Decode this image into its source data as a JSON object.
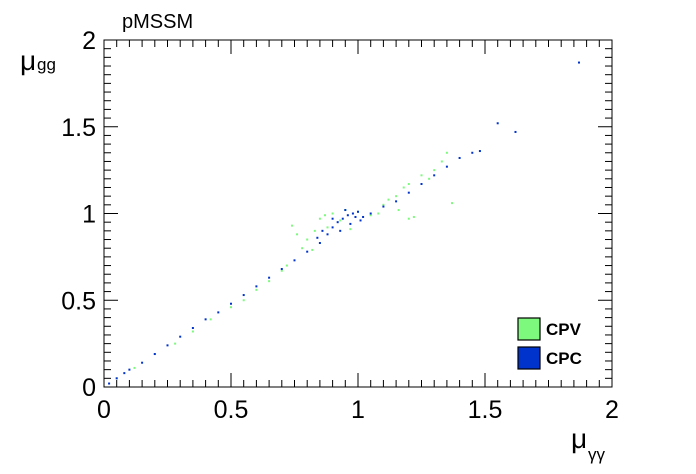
{
  "chart_data": {
    "type": "scatter",
    "title": "pMSSM",
    "xlabel": {
      "main": "μ",
      "sub": "γγ"
    },
    "ylabel": {
      "main": "μ",
      "sub": "gg"
    },
    "xlim": [
      0,
      2
    ],
    "ylim": [
      0,
      2
    ],
    "x_ticks": [
      "0",
      "0.5",
      "1",
      "1.5",
      "2"
    ],
    "y_ticks": [
      "0",
      "0.5",
      "1",
      "1.5",
      "2"
    ],
    "grid": false,
    "legend_position": "bottom-right",
    "series": [
      {
        "name": "CPV",
        "color": "#7dfa7d",
        "points": [
          [
            0.05,
            0.05
          ],
          [
            0.12,
            0.11
          ],
          [
            0.2,
            0.19
          ],
          [
            0.28,
            0.25
          ],
          [
            0.35,
            0.32
          ],
          [
            0.42,
            0.39
          ],
          [
            0.5,
            0.46
          ],
          [
            0.55,
            0.5
          ],
          [
            0.6,
            0.56
          ],
          [
            0.65,
            0.61
          ],
          [
            0.7,
            0.67
          ],
          [
            0.72,
            0.7
          ],
          [
            0.74,
            0.93
          ],
          [
            0.76,
            0.88
          ],
          [
            0.8,
            0.85
          ],
          [
            0.83,
            0.9
          ],
          [
            0.85,
            0.97
          ],
          [
            0.87,
            0.99
          ],
          [
            0.9,
            1.0
          ],
          [
            0.93,
            0.96
          ],
          [
            0.95,
            1.02
          ],
          [
            1.0,
            1.01
          ],
          [
            1.05,
            0.99
          ],
          [
            1.08,
            1.0
          ],
          [
            1.1,
            1.05
          ],
          [
            1.12,
            1.08
          ],
          [
            1.15,
            1.1
          ],
          [
            1.18,
            1.15
          ],
          [
            1.2,
            1.17
          ],
          [
            1.22,
            0.98
          ],
          [
            1.25,
            1.22
          ],
          [
            1.28,
            1.2
          ],
          [
            1.3,
            1.25
          ],
          [
            1.33,
            1.3
          ],
          [
            1.35,
            1.35
          ],
          [
            1.37,
            1.06
          ],
          [
            1.2,
            0.97
          ],
          [
            1.16,
            1.02
          ],
          [
            0.88,
            0.92
          ],
          [
            0.82,
            0.79
          ],
          [
            0.78,
            0.8
          ],
          [
            0.97,
            0.91
          ]
        ]
      },
      {
        "name": "CPC",
        "color": "#0033cc",
        "points": [
          [
            0.02,
            0.02
          ],
          [
            0.05,
            0.05
          ],
          [
            0.08,
            0.08
          ],
          [
            0.1,
            0.1
          ],
          [
            0.15,
            0.14
          ],
          [
            0.2,
            0.19
          ],
          [
            0.25,
            0.24
          ],
          [
            0.3,
            0.29
          ],
          [
            0.35,
            0.34
          ],
          [
            0.4,
            0.39
          ],
          [
            0.45,
            0.43
          ],
          [
            0.5,
            0.48
          ],
          [
            0.55,
            0.53
          ],
          [
            0.6,
            0.58
          ],
          [
            0.65,
            0.63
          ],
          [
            0.7,
            0.68
          ],
          [
            0.75,
            0.73
          ],
          [
            0.8,
            0.78
          ],
          [
            0.85,
            0.83
          ],
          [
            0.88,
            0.88
          ],
          [
            0.9,
            0.92
          ],
          [
            0.92,
            0.95
          ],
          [
            0.94,
            0.97
          ],
          [
            0.96,
            0.99
          ],
          [
            0.98,
            1.0
          ],
          [
            1.0,
            1.01
          ],
          [
            1.02,
            0.98
          ],
          [
            1.05,
            1.0
          ],
          [
            1.1,
            1.04
          ],
          [
            1.15,
            1.07
          ],
          [
            1.2,
            1.12
          ],
          [
            1.25,
            1.17
          ],
          [
            1.3,
            1.22
          ],
          [
            1.35,
            1.27
          ],
          [
            1.4,
            1.32
          ],
          [
            1.45,
            1.35
          ],
          [
            1.48,
            1.36
          ],
          [
            1.55,
            1.52
          ],
          [
            1.62,
            1.47
          ],
          [
            1.87,
            1.87
          ],
          [
            0.86,
            0.9
          ],
          [
            0.93,
            0.9
          ],
          [
            0.97,
            0.94
          ],
          [
            1.01,
            0.96
          ],
          [
            0.9,
            0.97
          ],
          [
            0.95,
            1.02
          ],
          [
            0.99,
            0.98
          ],
          [
            0.84,
            0.86
          ]
        ]
      }
    ]
  }
}
